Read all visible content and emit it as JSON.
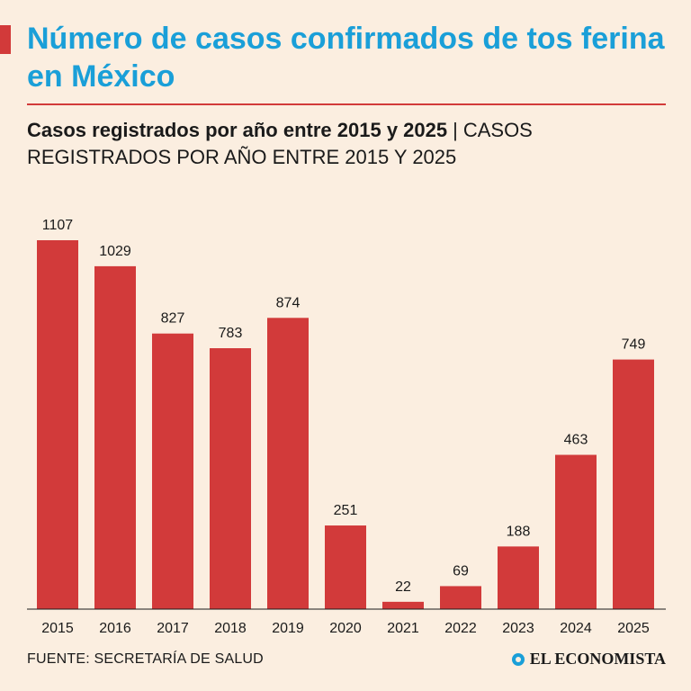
{
  "header": {
    "title": "Número de casos confirmados de tos ferina en México",
    "subtitle_bold": "Casos registrados por año entre 2015 y 2025",
    "separator": "|",
    "subtitle_caps": "CASOS REGISTRADOS POR AÑO ENTRE 2015 Y 2025"
  },
  "footer": {
    "source": "FUENTE: SECRETARÍA DE SALUD",
    "logo_text": "EL ECONOMISTA"
  },
  "colors": {
    "bar": "#d23a3a",
    "title": "#1a9fd8",
    "background": "#fbeee0"
  },
  "chart_data": {
    "type": "bar",
    "title": "Número de casos confirmados de tos ferina en México",
    "xlabel": "",
    "ylabel": "",
    "categories": [
      "2015",
      "2016",
      "2017",
      "2018",
      "2019",
      "2020",
      "2021",
      "2022",
      "2023",
      "2024",
      "2025"
    ],
    "values": [
      1107,
      1029,
      827,
      783,
      874,
      251,
      22,
      69,
      188,
      463,
      749
    ],
    "ylim": [
      0,
      1107
    ],
    "grid": false,
    "data_labels": true
  }
}
